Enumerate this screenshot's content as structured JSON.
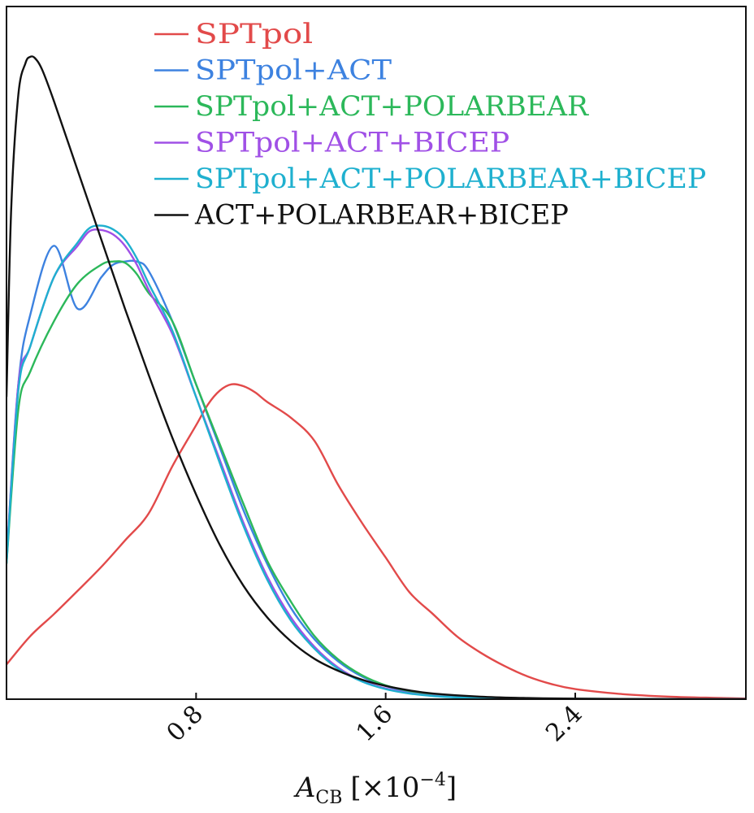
{
  "chart_data": {
    "type": "line",
    "title": "",
    "xlabel": {
      "symbol": "A",
      "subscript": "CB",
      "unit_prefix": "[×10",
      "unit_exponent": "−4",
      "unit_suffix": "]"
    },
    "ylabel": "",
    "xlim": [
      0,
      3.12
    ],
    "ylim": [
      0,
      1.1
    ],
    "xticks": [
      0.8,
      1.6,
      2.4
    ],
    "xtick_labels": [
      "0.8",
      "1.6",
      "2.4"
    ],
    "yticks": [],
    "grid": false,
    "legend_position": "top",
    "series": [
      {
        "name": "SPTpol",
        "color": "#e24a4a",
        "x": [
          0,
          0.1,
          0.2,
          0.3,
          0.4,
          0.5,
          0.6,
          0.7,
          0.8,
          0.85,
          0.9,
          0.95,
          1.0,
          1.05,
          1.1,
          1.2,
          1.3,
          1.4,
          1.5,
          1.6,
          1.7,
          1.8,
          1.9,
          2.0,
          2.1,
          2.2,
          2.3,
          2.4,
          2.6,
          2.8,
          3.0,
          3.12
        ],
        "y": [
          0.055,
          0.1,
          0.135,
          0.172,
          0.21,
          0.252,
          0.295,
          0.37,
          0.435,
          0.468,
          0.49,
          0.5,
          0.497,
          0.487,
          0.472,
          0.447,
          0.41,
          0.34,
          0.28,
          0.225,
          0.17,
          0.135,
          0.1,
          0.074,
          0.053,
          0.036,
          0.024,
          0.016,
          0.008,
          0.004,
          0.002,
          0.001
        ]
      },
      {
        "name": "SPTpol+ACT",
        "color": "#3d82e0",
        "x": [
          0,
          0.05,
          0.1,
          0.2,
          0.3,
          0.4,
          0.45,
          0.5,
          0.55,
          0.6,
          0.7,
          0.8,
          0.9,
          1.0,
          1.1,
          1.2,
          1.3,
          1.4,
          1.5,
          1.6,
          1.7,
          1.8,
          1.9,
          2.0,
          2.2,
          2.4,
          2.7,
          3.12
        ],
        "y": [
          0.22,
          0.5,
          0.61,
          0.72,
          0.62,
          0.67,
          0.69,
          0.695,
          0.695,
          0.68,
          0.6,
          0.5,
          0.4,
          0.3,
          0.215,
          0.145,
          0.095,
          0.06,
          0.036,
          0.021,
          0.012,
          0.007,
          0.004,
          0.0025,
          0.001,
          0.0005,
          0.0002,
          0.0001
        ]
      },
      {
        "name": "SPTpol+ACT+POLARBEAR",
        "color": "#2cb85a",
        "x": [
          0,
          0.05,
          0.1,
          0.2,
          0.3,
          0.4,
          0.45,
          0.5,
          0.55,
          0.6,
          0.7,
          0.8,
          0.9,
          1.0,
          1.1,
          1.2,
          1.3,
          1.4,
          1.5,
          1.6,
          1.7,
          1.8,
          1.9,
          2.0,
          2.2,
          2.4,
          2.7,
          3.12
        ],
        "y": [
          0.215,
          0.46,
          0.52,
          0.6,
          0.66,
          0.69,
          0.695,
          0.693,
          0.675,
          0.645,
          0.6,
          0.5,
          0.405,
          0.31,
          0.22,
          0.155,
          0.1,
          0.063,
          0.038,
          0.022,
          0.013,
          0.0075,
          0.0045,
          0.0027,
          0.001,
          0.0005,
          0.0002,
          0.0001
        ]
      },
      {
        "name": "SPTpol+ACT+BICEP",
        "color": "#a050e6",
        "x": [
          0,
          0.05,
          0.1,
          0.2,
          0.3,
          0.35,
          0.4,
          0.45,
          0.5,
          0.55,
          0.6,
          0.7,
          0.8,
          0.9,
          1.0,
          1.1,
          1.2,
          1.3,
          1.4,
          1.5,
          1.6,
          1.7,
          1.8,
          1.9,
          2.0,
          2.2,
          2.4,
          2.7,
          3.12
        ],
        "y": [
          0.22,
          0.5,
          0.56,
          0.67,
          0.72,
          0.743,
          0.745,
          0.738,
          0.72,
          0.69,
          0.65,
          0.58,
          0.48,
          0.38,
          0.28,
          0.195,
          0.13,
          0.083,
          0.05,
          0.029,
          0.017,
          0.0095,
          0.0055,
          0.003,
          0.0018,
          0.0007,
          0.0003,
          0.0001,
          5e-05
        ]
      },
      {
        "name": "SPTpol+ACT+POLARBEAR+BICEP",
        "color": "#1fb0cf",
        "x": [
          0,
          0.05,
          0.1,
          0.2,
          0.3,
          0.35,
          0.4,
          0.45,
          0.5,
          0.55,
          0.6,
          0.7,
          0.8,
          0.9,
          1.0,
          1.1,
          1.2,
          1.3,
          1.4,
          1.5,
          1.6,
          1.7,
          1.8,
          1.9,
          2.0,
          2.2,
          2.4,
          2.7,
          3.12
        ],
        "y": [
          0.215,
          0.49,
          0.56,
          0.67,
          0.725,
          0.748,
          0.752,
          0.746,
          0.73,
          0.7,
          0.66,
          0.585,
          0.48,
          0.375,
          0.275,
          0.19,
          0.125,
          0.08,
          0.048,
          0.028,
          0.016,
          0.009,
          0.005,
          0.0028,
          0.0016,
          0.0006,
          0.0002,
          0.0001,
          5e-05
        ]
      },
      {
        "name": "ACT+POLARBEAR+BICEP",
        "color": "#111111",
        "x": [
          0,
          0.02,
          0.05,
          0.08,
          0.1,
          0.12,
          0.15,
          0.2,
          0.3,
          0.4,
          0.5,
          0.6,
          0.7,
          0.8,
          0.9,
          1.0,
          1.1,
          1.2,
          1.3,
          1.4,
          1.5,
          1.6,
          1.7,
          1.8,
          2.0,
          2.2,
          2.4,
          2.7,
          3.12
        ],
        "y": [
          0.48,
          0.78,
          0.96,
          1.01,
          1.02,
          1.018,
          1.0,
          0.95,
          0.84,
          0.73,
          0.62,
          0.515,
          0.415,
          0.325,
          0.245,
          0.18,
          0.13,
          0.092,
          0.064,
          0.045,
          0.031,
          0.021,
          0.014,
          0.009,
          0.004,
          0.0018,
          0.0008,
          0.0002,
          0.0001
        ]
      }
    ]
  }
}
